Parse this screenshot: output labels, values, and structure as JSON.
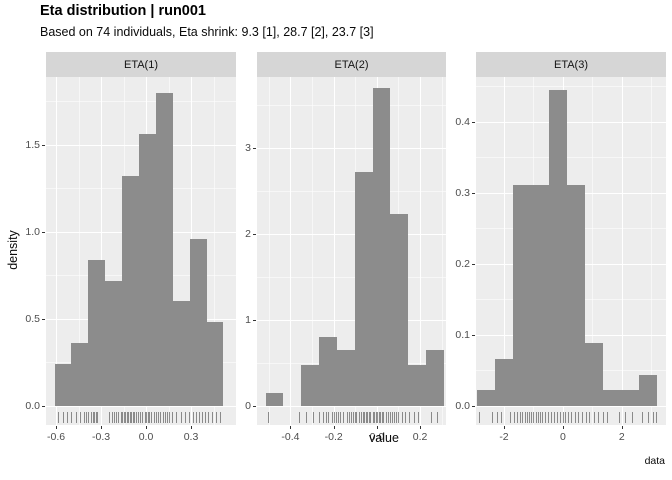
{
  "header": {
    "title": "Eta distribution | run001",
    "subtitle": "Based on 74 individuals, Eta shrink: 9.3 [1], 28.7 [2], 23.7 [3]"
  },
  "axes": {
    "y_label": "density",
    "x_label": "value"
  },
  "caption": "data",
  "chart_data": {
    "type": "bar",
    "subtype": "faceted-histogram-with-rug",
    "title": "Eta distribution | run001",
    "subtitle": "Based on 74 individuals, Eta shrink: 9.3 [1], 28.7 [2], 23.7 [3]",
    "xlabel": "value",
    "ylabel": "density",
    "grid": "on",
    "bar_fill": "#8c8c8c",
    "panel_fill": "#ededed",
    "strip_fill": "#d6d6d6",
    "facets": [
      {
        "label": "ETA(1)",
        "x_domain": [
          -0.667,
          0.6
        ],
        "y_domain": [
          -0.11,
          1.89
        ],
        "bins": {
          "start": -0.61,
          "width": 0.1126,
          "densities": [
            0.24,
            0.36,
            0.84,
            0.72,
            1.32,
            1.56,
            1.8,
            0.6,
            0.96,
            0.48
          ]
        },
        "x_ticks": [
          {
            "v": -0.6,
            "label": "-0.6"
          },
          {
            "v": -0.3,
            "label": "-0.3"
          },
          {
            "v": 0.0,
            "label": "0.0"
          },
          {
            "v": 0.3,
            "label": "0.3"
          }
        ],
        "y_ticks": [
          {
            "v": 0.0,
            "label": "0.0"
          },
          {
            "v": 0.5,
            "label": "0.5"
          },
          {
            "v": 1.0,
            "label": "1.0"
          },
          {
            "v": 1.5,
            "label": "1.5"
          }
        ],
        "x_minor": [
          -0.45,
          -0.15,
          0.15,
          0.45
        ],
        "y_minor": [
          0.25,
          0.75,
          1.25,
          1.75
        ],
        "rug": [
          -0.585,
          -0.555,
          -0.53,
          -0.5,
          -0.47,
          -0.44,
          -0.415,
          -0.4,
          -0.385,
          -0.37,
          -0.355,
          -0.345,
          -0.335,
          -0.325,
          -0.25,
          -0.23,
          -0.215,
          -0.2,
          -0.185,
          -0.17,
          -0.16,
          -0.15,
          -0.14,
          -0.13,
          -0.12,
          -0.11,
          -0.1,
          -0.09,
          -0.08,
          -0.07,
          -0.055,
          -0.04,
          -0.025,
          -0.01,
          0.0,
          0.01,
          0.02,
          0.035,
          0.05,
          0.065,
          0.08,
          0.095,
          0.11,
          0.125,
          0.14,
          0.155,
          0.175,
          0.2,
          0.23,
          0.26,
          0.285,
          0.31,
          0.33,
          0.35,
          0.375,
          0.395,
          0.415,
          0.44,
          0.465,
          0.49
        ]
      },
      {
        "label": "ETA(2)",
        "x_domain": [
          -0.555,
          0.32
        ],
        "y_domain": [
          -0.22,
          3.83
        ],
        "bins": {
          "start": -0.515,
          "width": 0.0825,
          "densities": [
            0.15,
            0,
            0.48,
            0.8,
            0.65,
            2.72,
            3.7,
            2.24,
            0.48,
            0.65
          ]
        },
        "x_ticks": [
          {
            "v": -0.4,
            "label": "-0.4"
          },
          {
            "v": -0.2,
            "label": "-0.2"
          },
          {
            "v": 0.0,
            "label": "0.0"
          },
          {
            "v": 0.2,
            "label": "0.2"
          }
        ],
        "y_ticks": [
          {
            "v": 0,
            "label": "0"
          },
          {
            "v": 1,
            "label": "1"
          },
          {
            "v": 2,
            "label": "2"
          },
          {
            "v": 3,
            "label": "3"
          }
        ],
        "x_minor": [
          -0.5,
          -0.3,
          -0.1,
          0.1,
          0.3
        ],
        "y_minor": [
          0.5,
          1.5,
          2.5,
          3.5
        ],
        "rug": [
          -0.505,
          -0.36,
          -0.33,
          -0.295,
          -0.27,
          -0.25,
          -0.235,
          -0.225,
          -0.21,
          -0.2,
          -0.19,
          -0.18,
          -0.17,
          -0.155,
          -0.14,
          -0.13,
          -0.12,
          -0.11,
          -0.1,
          -0.095,
          -0.085,
          -0.075,
          -0.065,
          -0.06,
          -0.05,
          -0.045,
          -0.035,
          -0.03,
          -0.02,
          -0.015,
          -0.005,
          0.0,
          0.01,
          0.015,
          0.025,
          0.03,
          0.04,
          0.05,
          0.06,
          0.07,
          0.08,
          0.09,
          0.1,
          0.115,
          0.13,
          0.15,
          0.17,
          0.19,
          0.25,
          0.28
        ]
      },
      {
        "label": "ETA(3)",
        "x_domain": [
          -2.95,
          3.5
        ],
        "y_domain": [
          -0.0268,
          0.4633
        ],
        "bins": {
          "start": -2.9,
          "width": 0.61,
          "densities": [
            0.022,
            0.066,
            0.311,
            0.311,
            0.445,
            0.311,
            0.089,
            0.022,
            0.022,
            0.044
          ]
        },
        "x_ticks": [
          {
            "v": -2,
            "label": "-2"
          },
          {
            "v": 0,
            "label": "0"
          },
          {
            "v": 2,
            "label": "2"
          }
        ],
        "y_ticks": [
          {
            "v": 0.0,
            "label": "0.0"
          },
          {
            "v": 0.1,
            "label": "0.1"
          },
          {
            "v": 0.2,
            "label": "0.2"
          },
          {
            "v": 0.3,
            "label": "0.3"
          },
          {
            "v": 0.4,
            "label": "0.4"
          }
        ],
        "x_minor": [
          -1,
          1,
          3
        ],
        "y_minor": [
          0.05,
          0.15,
          0.25,
          0.35,
          0.45
        ],
        "rug": [
          -2.85,
          -2.4,
          -2.25,
          -2.1,
          -1.8,
          -1.65,
          -1.55,
          -1.45,
          -1.38,
          -1.3,
          -1.22,
          -1.15,
          -1.08,
          -1.0,
          -0.92,
          -0.85,
          -0.78,
          -0.7,
          -0.62,
          -0.5,
          -0.4,
          -0.3,
          -0.2,
          -0.1,
          0.0,
          0.08,
          0.18,
          0.28,
          0.4,
          0.52,
          0.65,
          0.78,
          0.9,
          1.05,
          1.2,
          1.35,
          1.5,
          1.9,
          2.1,
          2.35,
          2.7,
          2.9,
          3.05,
          3.15
        ]
      }
    ]
  }
}
